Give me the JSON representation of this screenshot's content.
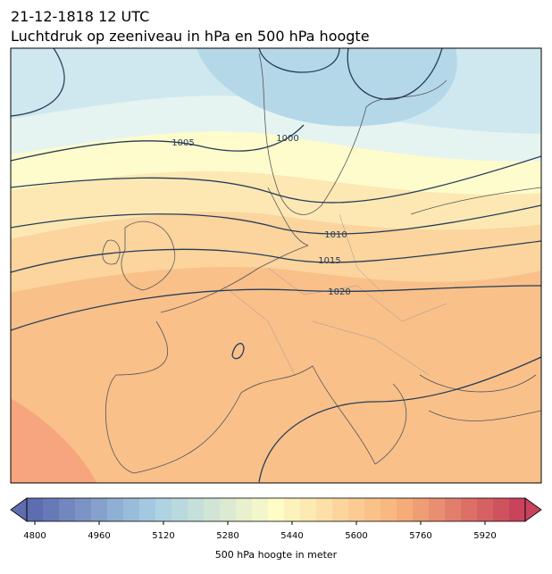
{
  "title": "21-12-1818 12 UTC",
  "subtitle": "Luchtdruk op zeeniveau in hPa en 500 hPa hoogte",
  "isobar_labels": [
    "1005",
    "1000",
    "1010",
    "1015",
    "1020"
  ],
  "colorbar": {
    "lim": [
      4780,
      6020
    ],
    "step": 40,
    "ticks": [
      4800,
      4960,
      5120,
      5280,
      5440,
      5600,
      5760,
      5920
    ],
    "label": "500 hPa hoogte in meter"
  }
}
